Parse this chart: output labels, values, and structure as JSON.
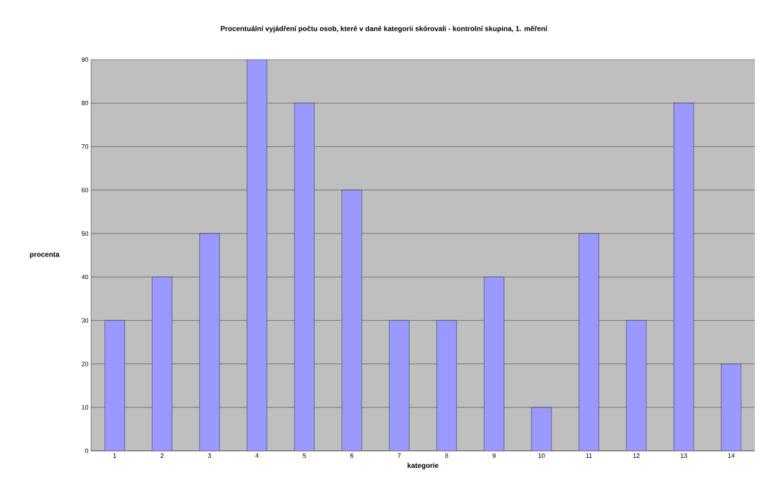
{
  "chart_data": {
    "type": "bar",
    "title": "Procentuální vyjádření počtu osob, které v dané kategorii skórovali - kontrolní skupina, 1. měření",
    "xlabel": "kategorie",
    "ylabel": "procenta",
    "categories": [
      "1",
      "2",
      "3",
      "4",
      "5",
      "6",
      "7",
      "8",
      "9",
      "10",
      "11",
      "12",
      "13",
      "14"
    ],
    "values": [
      30,
      40,
      50,
      90,
      80,
      60,
      30,
      30,
      40,
      10,
      50,
      30,
      80,
      20
    ],
    "color": "#9999ff",
    "ylim": [
      0,
      90
    ],
    "yticks": [
      0,
      10,
      20,
      30,
      40,
      50,
      60,
      70,
      80,
      90
    ],
    "grid": "y"
  }
}
